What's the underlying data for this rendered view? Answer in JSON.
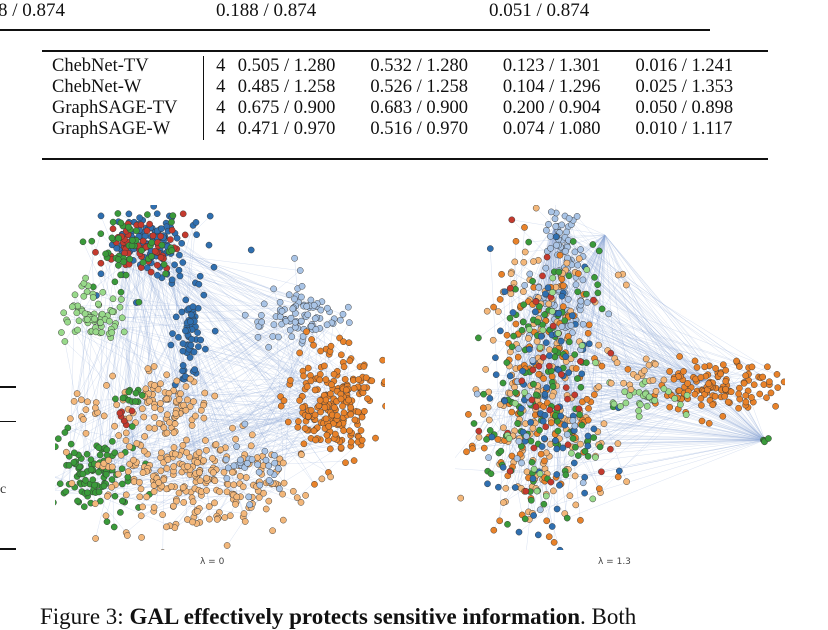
{
  "previous_row": [
    "8 / 0.874",
    "0.188 / 0.874",
    "0.051 / 0.874"
  ],
  "table": {
    "rows": [
      {
        "model": "ChebNet-TV",
        "k": "4",
        "values": [
          "0.505 / 1.280",
          "0.532 / 1.280",
          "0.123 / 1.301",
          "0.016 / 1.241"
        ]
      },
      {
        "model": "ChebNet-W",
        "k": "4",
        "values": [
          "0.485 / 1.258",
          "0.526 / 1.258",
          "0.104 / 1.296",
          "0.025 / 1.353"
        ]
      },
      {
        "model": "GraphSAGE-TV",
        "k": "4",
        "values": [
          "0.675 / 0.900",
          "0.683 / 0.900",
          "0.200 / 0.904",
          "0.050 / 0.898"
        ]
      },
      {
        "model": "GraphSAGE-W",
        "k": "4",
        "values": [
          "0.471 / 0.970",
          "0.516 / 0.970",
          "0.074 / 1.080",
          "0.010 / 1.117"
        ]
      }
    ]
  },
  "figure": {
    "left_label": "λ = 0",
    "right_label": "λ = 1.3",
    "colors": {
      "orange": "#e8822a",
      "light_orange": "#f3b77a",
      "blue": "#2f6fb0",
      "light_blue": "#a9c4e6",
      "green": "#3a9a3a",
      "light_green": "#98d98a",
      "red": "#c43a2e",
      "edge": "#8fa9d8"
    }
  },
  "caption": {
    "prefix": "Figure 3: ",
    "bold": "GAL effectively protects sensitive information",
    "suffix": ". Both"
  },
  "margin_fragment": "c"
}
